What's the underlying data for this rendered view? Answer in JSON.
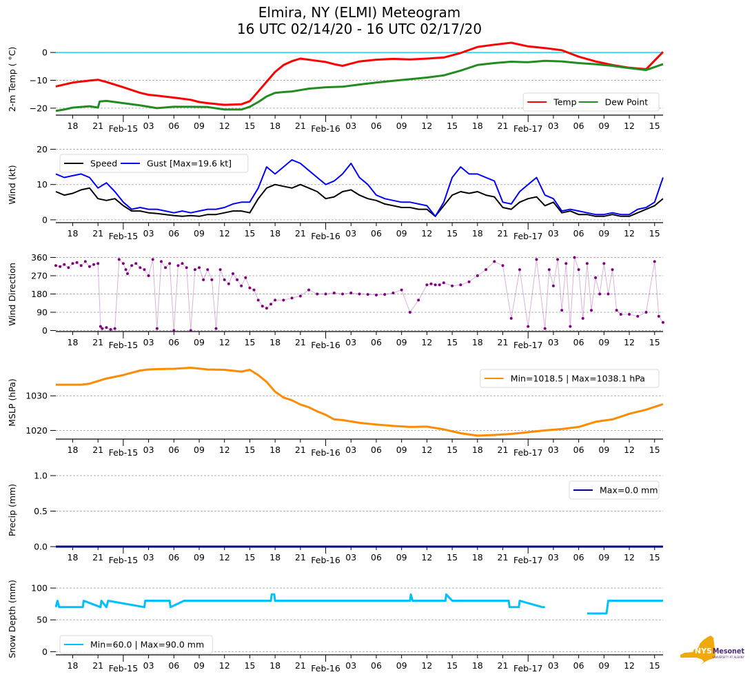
{
  "title_line1": "Elmira, NY (ELMI) Meteogram",
  "title_line2": "16 UTC 02/14/20 - 16 UTC 02/17/20",
  "logo": {
    "text_main": "NYS",
    "text_brand": "Mesonet",
    "text_sub": "UNIVERSITY AT ALBANY",
    "state_color": "#f0a90c",
    "brand_color": "#4b2a7b"
  },
  "chart_data": [
    {
      "id": "temp",
      "type": "line",
      "ylabel": "2-m Temp ($^\\circ$C)",
      "ylabel_display": "2-m Temp ( °C)",
      "ylim": [
        -22.5,
        3.5
      ],
      "yticks": [
        0,
        -10,
        -20
      ],
      "ytick_labels": [
        "0",
        "−10",
        "−20"
      ],
      "grid": true,
      "zero_line_color": "#00bfff",
      "legend": {
        "placement": "lower-right",
        "columns": 2
      },
      "x_hours_from_start": true,
      "series": [
        {
          "name": "Temp",
          "color": "#ff0000",
          "x": [
            0,
            2,
            4,
            5,
            6,
            8,
            10,
            11,
            12,
            14,
            16,
            17,
            18,
            20,
            22,
            23,
            24,
            25,
            26,
            27,
            28,
            29,
            30,
            31,
            32,
            33,
            34,
            35,
            36,
            38,
            40,
            42,
            44,
            46,
            48,
            50,
            52,
            54,
            56,
            58,
            60,
            62,
            64,
            66,
            68,
            70,
            72
          ],
          "y": [
            -12.2,
            -10.8,
            -10.1,
            -9.8,
            -10.6,
            -12.5,
            -14.5,
            -15.2,
            -15.5,
            -16.2,
            -17,
            -17.8,
            -18.2,
            -18.8,
            -18.6,
            -17.5,
            -14,
            -10.5,
            -7,
            -4.5,
            -3.1,
            -2.2,
            -2.6,
            -3,
            -3.4,
            -4.2,
            -4.8,
            -4,
            -3.2,
            -2.6,
            -2.3,
            -2.5,
            -2.2,
            -1.8,
            -0.2,
            2.0,
            2.8,
            3.5,
            2.2,
            1.6,
            0.8,
            -1.5,
            -3.2,
            -4.5,
            -5.5,
            -6.0,
            0.2
          ]
        },
        {
          "name": "Dew Point",
          "color": "#228b22",
          "x": [
            0,
            1,
            2,
            4,
            5,
            5.2,
            6,
            8,
            10,
            12,
            14,
            16,
            18,
            20,
            22,
            23,
            24,
            25,
            26,
            27,
            28,
            30,
            32,
            34,
            36,
            38,
            40,
            42,
            44,
            46,
            48,
            50,
            52,
            54,
            56,
            58,
            60,
            62,
            64,
            66,
            68,
            70,
            72
          ],
          "y": [
            -21,
            -20.5,
            -19.8,
            -19.3,
            -19.8,
            -17.6,
            -17.4,
            -18.2,
            -19,
            -20,
            -19.5,
            -19.5,
            -19.6,
            -20.5,
            -20.5,
            -19.5,
            -17.8,
            -15.8,
            -14.5,
            -14.2,
            -14,
            -13,
            -12.5,
            -12.3,
            -11.5,
            -10.8,
            -10.2,
            -9.6,
            -9,
            -8.2,
            -6.5,
            -4.5,
            -3.8,
            -3.3,
            -3.5,
            -3,
            -3.2,
            -3.8,
            -4.2,
            -4.8,
            -5.6,
            -6.3,
            -4.2
          ]
        }
      ]
    },
    {
      "id": "wind",
      "type": "line",
      "ylabel": "Wind (kt)",
      "ylim": [
        -0.8,
        20.5
      ],
      "yticks": [
        0,
        10,
        20
      ],
      "ytick_labels": [
        "0",
        "10",
        "20"
      ],
      "grid": true,
      "legend": {
        "placement": "upper-left",
        "columns": 2
      },
      "series": [
        {
          "name": "Speed",
          "color": "#000000",
          "x": [
            0,
            1,
            2,
            3,
            4,
            5,
            6,
            7,
            8,
            9,
            10,
            11,
            12,
            13,
            14,
            15,
            16,
            17,
            18,
            19,
            20,
            21,
            22,
            23,
            24,
            25,
            26,
            27,
            28,
            29,
            30,
            31,
            32,
            33,
            34,
            35,
            36,
            37,
            38,
            39,
            40,
            41,
            42,
            43,
            44,
            45,
            46,
            47,
            48,
            49,
            50,
            51,
            52,
            53,
            54,
            55,
            56,
            57,
            58,
            59,
            60,
            61,
            62,
            63,
            64,
            65,
            66,
            67,
            68,
            69,
            70,
            71,
            72
          ],
          "y": [
            8,
            7,
            7.5,
            8.5,
            9,
            6,
            5.5,
            6,
            4,
            2.5,
            2.5,
            2,
            1.8,
            1.5,
            1.2,
            1,
            1.2,
            1,
            1.5,
            1.5,
            2,
            2.5,
            2.5,
            2,
            6,
            9,
            10,
            9.5,
            9,
            10,
            9,
            8,
            6,
            6.5,
            8,
            8.5,
            7,
            6,
            5.5,
            4.5,
            4,
            3.5,
            3.5,
            3,
            3,
            1,
            4,
            7,
            8,
            7.5,
            8,
            7,
            6.5,
            3.5,
            3,
            5,
            6,
            6.5,
            4,
            5,
            2,
            2.5,
            1.5,
            1.5,
            1,
            1,
            1.5,
            1,
            1,
            2,
            3,
            4,
            6
          ]
        },
        {
          "name": "Gust [Max=19.6 kt]",
          "color": "#0000ff",
          "x": [
            0,
            1,
            2,
            3,
            4,
            5,
            6,
            7,
            8,
            9,
            10,
            11,
            12,
            13,
            14,
            15,
            16,
            17,
            18,
            19,
            20,
            21,
            22,
            23,
            24,
            25,
            26,
            27,
            28,
            29,
            30,
            31,
            32,
            33,
            34,
            35,
            36,
            37,
            38,
            39,
            40,
            41,
            42,
            43,
            44,
            45,
            46,
            47,
            48,
            49,
            50,
            51,
            52,
            53,
            54,
            55,
            56,
            57,
            58,
            59,
            60,
            61,
            62,
            63,
            64,
            65,
            66,
            67,
            68,
            69,
            70,
            71,
            72
          ],
          "y": [
            13,
            12,
            12.5,
            13,
            12,
            9,
            10.5,
            8,
            5,
            3,
            3.5,
            3,
            3,
            2.5,
            2,
            2.5,
            2,
            2.5,
            3,
            3,
            3.5,
            4.5,
            5,
            5,
            9,
            15,
            13,
            15,
            17,
            16,
            14,
            12,
            10,
            11,
            13,
            16,
            12,
            10,
            7,
            6,
            5.5,
            5,
            5,
            4.5,
            4,
            1,
            5,
            12,
            15,
            13,
            13,
            12,
            11,
            5,
            4.5,
            8,
            10,
            12,
            7,
            6,
            2.5,
            3,
            2.5,
            2,
            1.5,
            1.5,
            2,
            1.5,
            1.5,
            3,
            3.5,
            5,
            12
          ]
        }
      ]
    },
    {
      "id": "wdir",
      "type": "scatter",
      "ylabel": "Wind Direction",
      "ylim": [
        -5,
        365
      ],
      "yticks": [
        0,
        90,
        180,
        270,
        360
      ],
      "ytick_labels": [
        "0",
        "90",
        "180",
        "270",
        "360"
      ],
      "grid": true,
      "series": [
        {
          "name": "Direction",
          "color": "#800080",
          "x": [
            0,
            0.5,
            1,
            1.5,
            2,
            2.5,
            3,
            3.5,
            4,
            4.5,
            5,
            5.3,
            5.5,
            6,
            6.5,
            7,
            7.5,
            8,
            8.3,
            8.5,
            9,
            9.5,
            10,
            10.5,
            11,
            11.5,
            12,
            12.5,
            13,
            13.5,
            14,
            14.5,
            15,
            15.5,
            16,
            16.5,
            17,
            17.5,
            18,
            18.5,
            19,
            19.5,
            20,
            20.5,
            21,
            21.5,
            22,
            22.5,
            23,
            23.5,
            24,
            24.5,
            25,
            25.5,
            26,
            27,
            28,
            29,
            30,
            31,
            32,
            33,
            34,
            35,
            36,
            37,
            38,
            39,
            40,
            41,
            42,
            43,
            44,
            44.5,
            45,
            45.5,
            46,
            47,
            48,
            49,
            50,
            51,
            52,
            53,
            54,
            55,
            56,
            57,
            58,
            58.5,
            59,
            59.5,
            60,
            60.5,
            61,
            61.5,
            62,
            62.5,
            63,
            63.5,
            64,
            64.5,
            65,
            65.5,
            66,
            66.5,
            67,
            68,
            69,
            70,
            71,
            71.5,
            72
          ],
          "y": [
            320,
            315,
            325,
            310,
            330,
            335,
            320,
            340,
            315,
            325,
            330,
            20,
            10,
            15,
            5,
            10,
            350,
            330,
            300,
            280,
            320,
            330,
            310,
            300,
            270,
            350,
            10,
            340,
            310,
            330,
            0,
            320,
            330,
            310,
            0,
            300,
            310,
            250,
            300,
            250,
            10,
            300,
            250,
            230,
            280,
            250,
            220,
            260,
            210,
            200,
            150,
            120,
            110,
            130,
            150,
            150,
            160,
            170,
            200,
            180,
            180,
            185,
            180,
            185,
            180,
            178,
            175,
            178,
            185,
            200,
            90,
            150,
            225,
            230,
            225,
            225,
            235,
            220,
            225,
            240,
            270,
            300,
            340,
            320,
            60,
            300,
            20,
            350,
            10,
            300,
            220,
            350,
            100,
            330,
            20,
            360,
            300,
            60,
            330,
            100,
            260,
            180,
            330,
            180,
            300,
            100,
            80,
            80,
            70,
            90,
            340,
            70,
            40
          ]
        }
      ]
    },
    {
      "id": "mslp",
      "type": "line",
      "ylabel": "MSLP (hPa)",
      "ylim": [
        1017.5,
        1039.2
      ],
      "yticks": [
        1020,
        1030
      ],
      "ytick_labels": [
        "1020",
        "1030"
      ],
      "grid": true,
      "legend": {
        "placement": "upper-right",
        "columns": 1
      },
      "series": [
        {
          "name": "Min=1018.5 | Max=1038.1 hPa",
          "color": "#ff8c00",
          "x": [
            0,
            3,
            4,
            6,
            8,
            10,
            11,
            12,
            14,
            16,
            18,
            20,
            22,
            23,
            24,
            25,
            26,
            27,
            28,
            29,
            30,
            31,
            32,
            33,
            34,
            36,
            38,
            40,
            42,
            44,
            46,
            48,
            50,
            52,
            54,
            56,
            58,
            60,
            62,
            64,
            66,
            68,
            70,
            72
          ],
          "y": [
            1033.2,
            1033.2,
            1033.5,
            1035,
            1036,
            1037.3,
            1037.6,
            1037.7,
            1037.8,
            1038.1,
            1037.6,
            1037.5,
            1037,
            1037.5,
            1036,
            1034,
            1031.2,
            1029.5,
            1028.7,
            1027.5,
            1026.7,
            1025.5,
            1024.5,
            1023.2,
            1023,
            1022.2,
            1021.7,
            1021.3,
            1021,
            1021.1,
            1020.3,
            1019.2,
            1018.5,
            1018.7,
            1019,
            1019.5,
            1020,
            1020.4,
            1021,
            1022.5,
            1023.2,
            1024.8,
            1026,
            1027.6
          ]
        }
      ]
    },
    {
      "id": "precip",
      "type": "line",
      "ylabel": "Precip (mm)",
      "ylim": [
        0,
        1.0
      ],
      "yticks": [
        0.0,
        0.5,
        1.0
      ],
      "ytick_labels": [
        "0.0",
        "0.5",
        "1.0"
      ],
      "grid": true,
      "legend": {
        "placement": "upper-right",
        "columns": 1
      },
      "series": [
        {
          "name": "Max=0.0 mm",
          "color": "#00008b",
          "x": [
            0,
            72
          ],
          "y": [
            0,
            0
          ]
        }
      ]
    },
    {
      "id": "snow",
      "type": "line",
      "ylabel": "Snow Depth (mm)",
      "ylim": [
        -5,
        112
      ],
      "yticks": [
        0,
        50,
        100
      ],
      "ytick_labels": [
        "0",
        "50",
        "100"
      ],
      "grid": true,
      "legend": {
        "placement": "lower-left",
        "columns": 1
      },
      "series": [
        {
          "name": "Min=60.0 | Max=90.0 mm",
          "color": "#00bfff",
          "x": [
            0,
            0.2,
            0.4,
            3.2,
            3.3,
            5.3,
            5.4,
            6,
            6.2,
            10.5,
            10.6,
            13.5,
            13.6,
            15.2,
            15.3,
            25.5,
            25.6,
            25.9,
            26,
            42,
            42.1,
            42.3,
            42.5,
            46.2,
            46.3,
            47,
            47.5,
            53.7,
            53.8,
            54.9,
            55,
            57.7,
            58,
            62.7,
            63,
            65.3,
            65.5,
            72
          ],
          "y": [
            70,
            80,
            70,
            70,
            80,
            70,
            80,
            70,
            80,
            70,
            80,
            80,
            70,
            80,
            80,
            80,
            90,
            90,
            80,
            80,
            90,
            80,
            80,
            80,
            90,
            80,
            80,
            80,
            70,
            70,
            80,
            70,
            70,
            null,
            60,
            60,
            80,
            80
          ]
        }
      ]
    }
  ],
  "x_axis": {
    "start": "16 UTC 02/14/20",
    "end": "16 UTC 02/17/20",
    "hour_tick_labels": [
      "18",
      "21",
      "03",
      "06",
      "09",
      "12",
      "15",
      "18",
      "21",
      "03",
      "06",
      "09",
      "12",
      "15",
      "18",
      "21",
      "03",
      "06",
      "09",
      "12",
      "15"
    ],
    "hour_tick_offsets": [
      2,
      5,
      11,
      14,
      17,
      20,
      23,
      26,
      29,
      35,
      38,
      41,
      44,
      47,
      50,
      53,
      59,
      62,
      65,
      68,
      71
    ],
    "day_tick_labels": [
      "Feb-15",
      "Feb-16",
      "Feb-17"
    ],
    "day_tick_offsets": [
      8,
      32,
      56
    ]
  }
}
